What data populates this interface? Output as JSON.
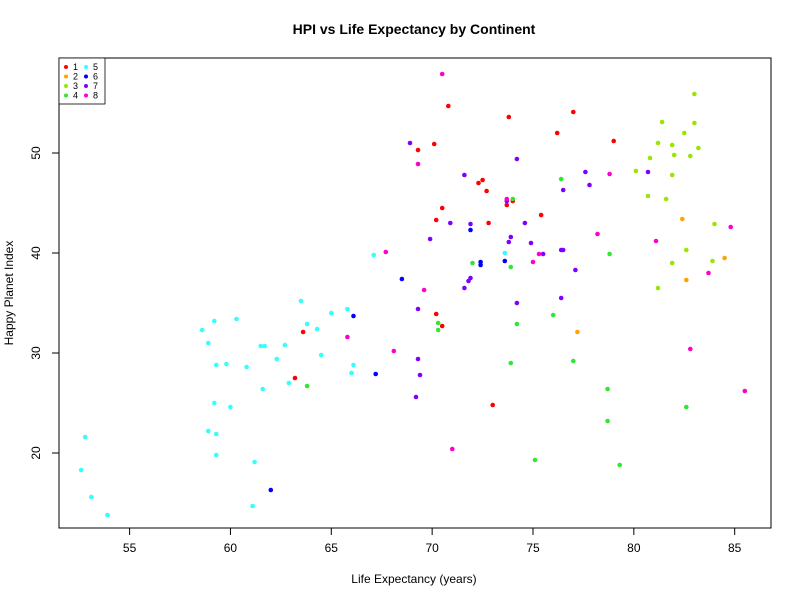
{
  "chart_data": {
    "type": "scatter",
    "title": "HPI vs Life Expectancy by Continent",
    "xlabel": "Life Expectancy (years)",
    "ylabel": "Happy Planet Index",
    "xlim": [
      51.5,
      86.8
    ],
    "ylim": [
      12.5,
      59.5
    ],
    "xticks": [
      55,
      60,
      65,
      70,
      75,
      80,
      85
    ],
    "yticks": [
      20,
      30,
      40,
      50
    ],
    "grid": false,
    "legend_position": "top-left",
    "series": [
      {
        "name": "1",
        "color": "#FF0000",
        "points": [
          [
            69.3,
            50.3
          ],
          [
            70.1,
            50.9
          ],
          [
            70.8,
            54.7
          ],
          [
            72.5,
            47.3
          ],
          [
            72.3,
            47.0
          ],
          [
            72.7,
            46.2
          ],
          [
            73.8,
            53.6
          ],
          [
            74.0,
            45.2
          ],
          [
            73.7,
            44.8
          ],
          [
            75.4,
            43.8
          ],
          [
            76.2,
            52.0
          ],
          [
            77.0,
            54.1
          ],
          [
            79.0,
            51.2
          ],
          [
            70.5,
            44.5
          ],
          [
            70.2,
            43.3
          ],
          [
            72.8,
            43.0
          ],
          [
            70.2,
            33.9
          ],
          [
            70.5,
            32.7
          ],
          [
            63.2,
            27.5
          ],
          [
            63.6,
            32.1
          ],
          [
            73.0,
            24.8
          ]
        ]
      },
      {
        "name": "2",
        "color": "#FFA500",
        "points": [
          [
            82.4,
            43.4
          ],
          [
            84.5,
            39.5
          ],
          [
            82.6,
            37.3
          ],
          [
            77.2,
            32.1
          ]
        ]
      },
      {
        "name": "3",
        "color": "#99E600",
        "points": [
          [
            83.0,
            55.9
          ],
          [
            81.4,
            53.1
          ],
          [
            83.0,
            53.0
          ],
          [
            82.5,
            52.0
          ],
          [
            81.2,
            51.0
          ],
          [
            81.9,
            50.8
          ],
          [
            83.2,
            50.5
          ],
          [
            80.8,
            49.5
          ],
          [
            82.0,
            49.8
          ],
          [
            82.8,
            49.7
          ],
          [
            81.9,
            47.8
          ],
          [
            80.1,
            48.2
          ],
          [
            80.7,
            45.7
          ],
          [
            81.6,
            45.4
          ],
          [
            84.0,
            42.9
          ],
          [
            81.9,
            39.0
          ],
          [
            82.6,
            40.3
          ],
          [
            83.9,
            39.2
          ],
          [
            81.2,
            36.5
          ]
        ]
      },
      {
        "name": "4",
        "color": "#33E633",
        "points": [
          [
            76.4,
            47.4
          ],
          [
            74.0,
            45.4
          ],
          [
            78.8,
            39.9
          ],
          [
            72.0,
            39.0
          ],
          [
            73.9,
            38.6
          ],
          [
            76.0,
            33.8
          ],
          [
            74.2,
            32.9
          ],
          [
            70.3,
            33.0
          ],
          [
            70.3,
            32.3
          ],
          [
            63.8,
            26.7
          ],
          [
            73.9,
            29.0
          ],
          [
            77.0,
            29.2
          ],
          [
            78.7,
            26.4
          ],
          [
            82.6,
            24.6
          ],
          [
            78.7,
            23.2
          ],
          [
            75.1,
            19.3
          ],
          [
            79.3,
            18.8
          ]
        ]
      },
      {
        "name": "5",
        "color": "#33FFFF",
        "points": [
          [
            52.6,
            18.3
          ],
          [
            52.8,
            21.6
          ],
          [
            53.1,
            15.6
          ],
          [
            53.9,
            13.8
          ],
          [
            58.6,
            32.3
          ],
          [
            58.9,
            31.0
          ],
          [
            59.2,
            33.2
          ],
          [
            60.3,
            33.4
          ],
          [
            59.3,
            28.8
          ],
          [
            59.8,
            28.9
          ],
          [
            60.8,
            28.6
          ],
          [
            61.5,
            30.7
          ],
          [
            61.7,
            30.7
          ],
          [
            62.3,
            29.4
          ],
          [
            62.7,
            30.8
          ],
          [
            63.5,
            35.2
          ],
          [
            63.8,
            32.9
          ],
          [
            64.3,
            32.4
          ],
          [
            64.5,
            29.8
          ],
          [
            65.0,
            34.0
          ],
          [
            65.8,
            34.4
          ],
          [
            66.0,
            28.0
          ],
          [
            66.1,
            28.8
          ],
          [
            67.1,
            39.8
          ],
          [
            61.6,
            26.4
          ],
          [
            62.9,
            27.0
          ],
          [
            59.2,
            25.0
          ],
          [
            60.0,
            24.6
          ],
          [
            58.9,
            22.2
          ],
          [
            59.3,
            21.9
          ],
          [
            59.3,
            19.8
          ],
          [
            61.2,
            19.1
          ],
          [
            61.1,
            14.7
          ],
          [
            73.6,
            40.0
          ]
        ]
      },
      {
        "name": "6",
        "color": "#0000FF",
        "points": [
          [
            68.5,
            37.4
          ],
          [
            66.1,
            33.7
          ],
          [
            67.2,
            27.9
          ],
          [
            62.0,
            16.3
          ],
          [
            71.9,
            42.3
          ],
          [
            72.4,
            39.1
          ],
          [
            72.4,
            38.8
          ],
          [
            73.6,
            39.2
          ]
        ]
      },
      {
        "name": "7",
        "color": "#8000FF",
        "points": [
          [
            68.9,
            51.0
          ],
          [
            74.2,
            49.4
          ],
          [
            71.6,
            47.8
          ],
          [
            77.6,
            48.1
          ],
          [
            80.7,
            48.1
          ],
          [
            77.8,
            46.8
          ],
          [
            76.5,
            46.3
          ],
          [
            73.7,
            45.2
          ],
          [
            74.6,
            43.0
          ],
          [
            70.9,
            43.0
          ],
          [
            71.9,
            42.9
          ],
          [
            73.9,
            41.6
          ],
          [
            73.8,
            41.1
          ],
          [
            74.9,
            41.0
          ],
          [
            69.9,
            41.4
          ],
          [
            76.4,
            40.3
          ],
          [
            76.5,
            40.3
          ],
          [
            75.5,
            39.9
          ],
          [
            71.9,
            37.5
          ],
          [
            71.8,
            37.2
          ],
          [
            71.6,
            36.5
          ],
          [
            77.1,
            38.3
          ],
          [
            76.4,
            35.5
          ],
          [
            74.2,
            35.0
          ],
          [
            69.3,
            34.4
          ],
          [
            69.3,
            29.4
          ],
          [
            69.4,
            27.8
          ],
          [
            69.2,
            25.6
          ]
        ]
      },
      {
        "name": "8",
        "color": "#FF00CC",
        "points": [
          [
            70.5,
            57.9
          ],
          [
            69.3,
            48.9
          ],
          [
            78.8,
            47.9
          ],
          [
            73.7,
            45.4
          ],
          [
            78.2,
            41.9
          ],
          [
            81.1,
            41.2
          ],
          [
            84.8,
            42.6
          ],
          [
            75.3,
            39.9
          ],
          [
            75.0,
            39.1
          ],
          [
            67.7,
            40.1
          ],
          [
            69.6,
            36.3
          ],
          [
            65.8,
            31.6
          ],
          [
            68.1,
            30.2
          ],
          [
            83.7,
            38.0
          ],
          [
            82.8,
            30.4
          ],
          [
            85.5,
            26.2
          ],
          [
            71.0,
            20.4
          ]
        ]
      }
    ]
  }
}
